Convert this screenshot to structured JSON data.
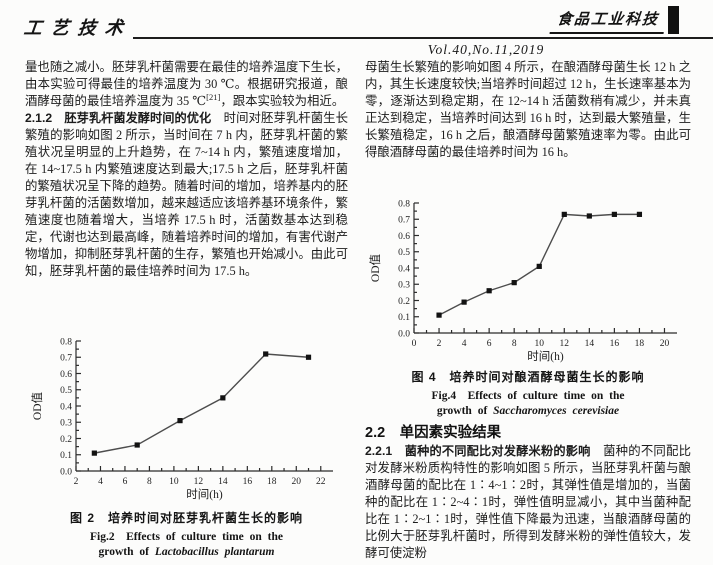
{
  "header": {
    "section_label": "工艺技术",
    "journal_logo": "食品工业科技",
    "issue": "Vol.40,No.11,2019"
  },
  "left_column": {
    "para_a": {
      "part1": "量也随之减小。胚芽乳杆菌需要在最佳的培养温度下生长，由本实验可得最佳的培养温度为 30 ℃。根据研究报道，酿酒酵母菌的最佳培养温度为 35 ℃",
      "superscript": "[21]",
      "part2": "，跟本实验较为相近。"
    },
    "para_b": {
      "heading": "2.1.2　胚芽乳杆菌发酵时间的优化",
      "body": "　时间对胚芽乳杆菌生长繁殖的影响如图 2 所示，当时间在 7 h 内，胚芽乳杆菌的繁殖状况呈明显的上升趋势，在 7~14 h 内，繁殖速度增加，在 14~17.5 h 内繁殖速度达到最大;17.5 h 之后，胚芽乳杆菌的繁殖状况呈下降的趋势。随着时间的增加，培养基内的胚芽乳杆菌的活菌数增加，越来越适应该培养基环境条件，繁殖速度也随着增大，当培养 17.5 h 时，活菌数基本达到稳定，代谢也达到最高峰，随着培养时间的增加，有害代谢产物增加，抑制胚芽乳杆菌的生存，繁殖也开始减小。由此可知，胚芽乳杆菌的最佳培养时间为 17.5 h。"
    },
    "fig2_caption": {
      "cn": "图 2　培养时间对胚芽乳杆菌生长的影响",
      "en_line1": "Fig.2　Effects of culture time on the",
      "en_line2_prefix": "growth of ",
      "species": "Lactobacillus plantarum"
    }
  },
  "right_column": {
    "para_c": "母菌生长繁殖的影响如图 4 所示，在酿酒酵母菌生长 12 h 之内，其生长速度较快;当培养时间超过 12 h，生长速率基本为零，逐渐达到稳定期，在 12~14 h 活菌数稍有减少，并未真正达到稳定，当培养时间达到 16 h 时，达到最大繁殖量，生长繁殖稳定，16 h 之后，酿酒酵母菌繁殖速率为零。由此可得酿酒酵母菌的最佳培养时间为 16 h。",
    "fig4_caption": {
      "cn": "图 4　培养时间对酿酒酵母菌生长的影响",
      "en_line1": "Fig.4　Effects of culture time on the",
      "en_line2_prefix": "growth of ",
      "species": "Saccharomyces cerevisiae"
    },
    "section_heading": "2.2　单因素实验结果",
    "para_d": {
      "heading": "2.2.1　菌种的不同配比对发酵米粉的影响",
      "body": "　菌种的不同配比对发酵米粉质构特性的影响如图 5 所示，当胚芽乳杆菌与酿酒酵母菌的配比在 1∶4~1∶2时，其弹性值是增加的，当菌种的配比在 1∶2~4∶1时，弹性值明显减小，其中当菌种配比在 1∶2~1∶1时，弹性值下降最为迅速，当酿酒酵母菌的比例大于胚芽乳杆菌时，所得到发酵米粉的弹性值较大，发酵可使淀粉"
    }
  },
  "chart_data": [
    {
      "id": "fig2",
      "type": "line",
      "title": "图2 培养时间对胚芽乳杆菌生长的影响",
      "xlabel": "时间(h)",
      "ylabel": "OD值",
      "x": [
        3.5,
        7,
        10.5,
        14,
        17.5,
        21
      ],
      "y": [
        0.11,
        0.16,
        0.31,
        0.45,
        0.72,
        0.7
      ],
      "xlim": [
        2,
        23
      ],
      "ylim": [
        0,
        0.8
      ],
      "xticks": [
        2,
        4,
        6,
        8,
        10,
        12,
        14,
        16,
        18,
        20,
        22
      ],
      "yticks": [
        0.0,
        0.1,
        0.2,
        0.3,
        0.4,
        0.5,
        0.6,
        0.7,
        0.8
      ],
      "legend": null,
      "grid": false
    },
    {
      "id": "fig4",
      "type": "line",
      "title": "图4 培养时间对酿酒酵母菌生长的影响",
      "xlabel": "时间(h)",
      "ylabel": "OD值",
      "x": [
        2,
        4,
        6,
        8,
        10,
        12,
        14,
        16,
        18
      ],
      "y": [
        0.11,
        0.19,
        0.26,
        0.31,
        0.41,
        0.73,
        0.72,
        0.73,
        0.73
      ],
      "xlim": [
        0,
        21
      ],
      "ylim": [
        0,
        0.8
      ],
      "xticks": [
        0,
        2,
        4,
        6,
        8,
        10,
        12,
        14,
        16,
        18,
        20
      ],
      "yticks": [
        0.0,
        0.1,
        0.2,
        0.3,
        0.4,
        0.5,
        0.6,
        0.7,
        0.8
      ],
      "legend": null,
      "grid": false
    }
  ]
}
